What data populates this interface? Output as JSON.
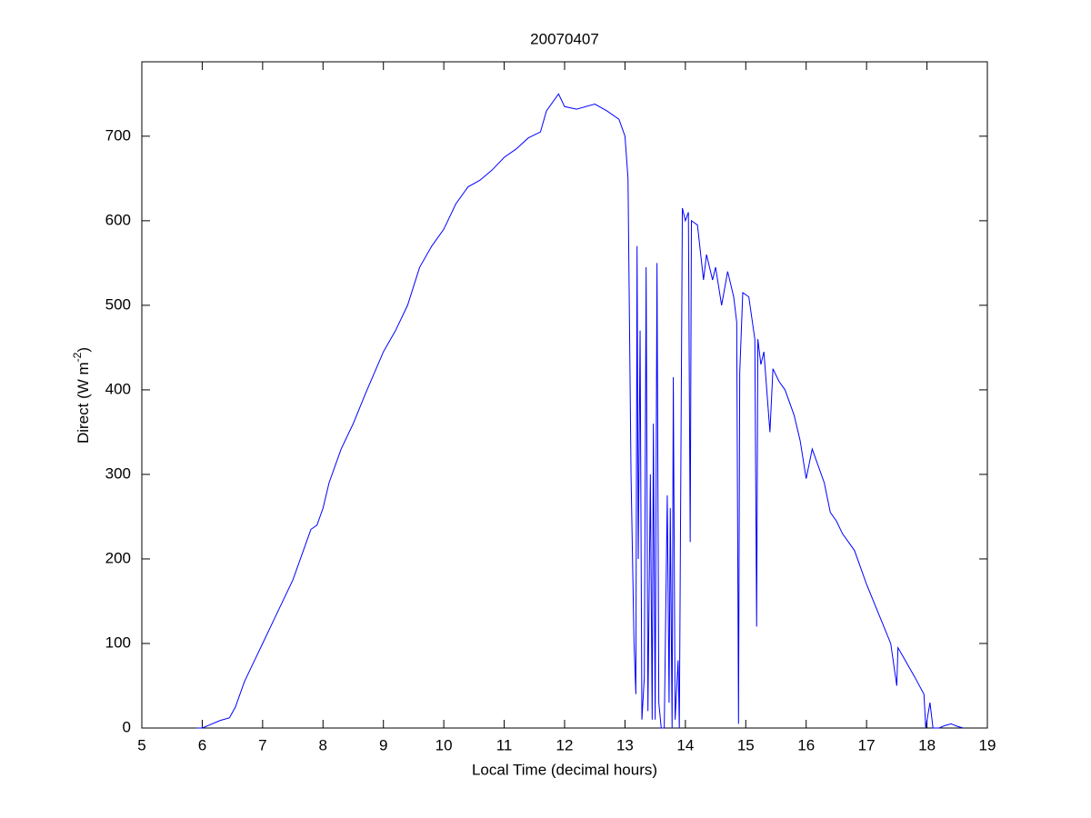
{
  "chart_data": {
    "type": "line",
    "title": "20070407",
    "xlabel": "Local Time (decimal hours)",
    "ylabel": {
      "text": "Direct (W m",
      "superscript": "-2",
      "suffix": ")"
    },
    "xlim": [
      5,
      19
    ],
    "ylim": [
      0,
      788
    ],
    "xticks": [
      5,
      6,
      7,
      8,
      9,
      10,
      11,
      12,
      13,
      14,
      15,
      16,
      17,
      18,
      19
    ],
    "yticks": [
      0,
      100,
      200,
      300,
      400,
      500,
      600,
      700
    ],
    "grid": false,
    "series": [
      {
        "color": "#0000ff",
        "x": [
          5.9,
          6.0,
          6.1,
          6.3,
          6.45,
          6.55,
          6.7,
          6.9,
          7.0,
          7.2,
          7.5,
          7.8,
          7.9,
          8.0,
          8.1,
          8.3,
          8.5,
          8.7,
          9.0,
          9.2,
          9.4,
          9.6,
          9.8,
          10.0,
          10.2,
          10.4,
          10.6,
          10.8,
          11.0,
          11.2,
          11.4,
          11.6,
          11.7,
          11.9,
          12.0,
          12.2,
          12.5,
          12.7,
          12.9,
          13.0,
          13.05,
          13.1,
          13.15,
          13.18,
          13.2,
          13.22,
          13.25,
          13.28,
          13.32,
          13.35,
          13.38,
          13.42,
          13.45,
          13.47,
          13.5,
          13.53,
          13.56,
          13.6,
          13.65,
          13.7,
          13.73,
          13.75,
          13.78,
          13.8,
          13.83,
          13.88,
          13.9,
          13.95,
          14.0,
          14.05,
          14.08,
          14.1,
          14.2,
          14.3,
          14.35,
          14.45,
          14.5,
          14.6,
          14.7,
          14.8,
          14.85,
          14.88,
          14.9,
          14.95,
          15.05,
          15.15,
          15.18,
          15.2,
          15.25,
          15.3,
          15.4,
          15.45,
          15.55,
          15.65,
          15.8,
          15.9,
          16.0,
          16.1,
          16.3,
          16.4,
          16.5,
          16.6,
          16.8,
          17.0,
          17.2,
          17.4,
          17.5,
          17.52,
          17.6,
          17.8,
          17.95,
          17.98,
          18.05,
          18.1,
          18.2,
          18.3,
          18.4,
          18.5,
          18.6
        ],
        "values": [
          0,
          0,
          3,
          9,
          12,
          25,
          55,
          85,
          100,
          130,
          175,
          235,
          240,
          260,
          290,
          330,
          360,
          395,
          445,
          470,
          500,
          545,
          570,
          590,
          620,
          640,
          648,
          660,
          675,
          685,
          698,
          705,
          730,
          750,
          735,
          732,
          738,
          730,
          720,
          700,
          650,
          300,
          100,
          40,
          570,
          200,
          470,
          10,
          60,
          545,
          20,
          300,
          10,
          360,
          10,
          550,
          30,
          0,
          0,
          275,
          30,
          260,
          0,
          415,
          10,
          80,
          0,
          615,
          600,
          610,
          220,
          600,
          595,
          530,
          560,
          530,
          545,
          500,
          540,
          510,
          480,
          5,
          420,
          515,
          510,
          460,
          120,
          460,
          430,
          445,
          350,
          425,
          410,
          400,
          370,
          340,
          295,
          330,
          290,
          255,
          245,
          230,
          210,
          170,
          135,
          100,
          50,
          95,
          85,
          60,
          40,
          0,
          30,
          0,
          0,
          3,
          5,
          2,
          0
        ]
      }
    ]
  }
}
